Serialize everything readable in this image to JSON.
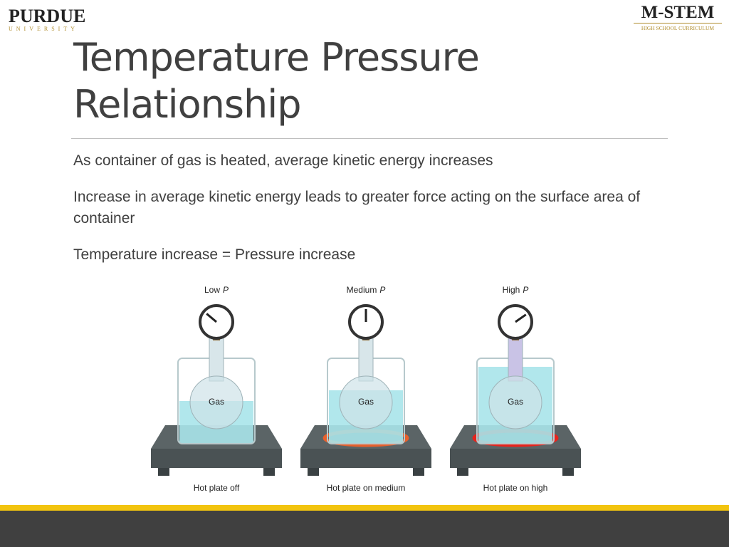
{
  "header": {
    "left_logo": {
      "name": "PURDUE",
      "subtitle": "UNIVERSITY"
    },
    "right_logo": {
      "name": "M-STEM",
      "subtitle": "HIGH SCHOOL CURRICULUM"
    }
  },
  "title": "Temperature Pressure Relationship",
  "bullets": [
    "As container of gas is heated, average kinetic energy increases",
    "Increase in average kinetic energy leads to greater force acting on the surface area of container",
    "Temperature increase = Pressure increase"
  ],
  "figure": {
    "panels": [
      {
        "pressure": "Low",
        "symbol": "P",
        "contents": "Gas",
        "caption": "Hot plate off"
      },
      {
        "pressure": "Medium",
        "symbol": "P",
        "contents": "Gas",
        "caption": "Hot plate on medium"
      },
      {
        "pressure": "High",
        "symbol": "P",
        "contents": "Gas",
        "caption": "Hot plate on high"
      }
    ]
  }
}
